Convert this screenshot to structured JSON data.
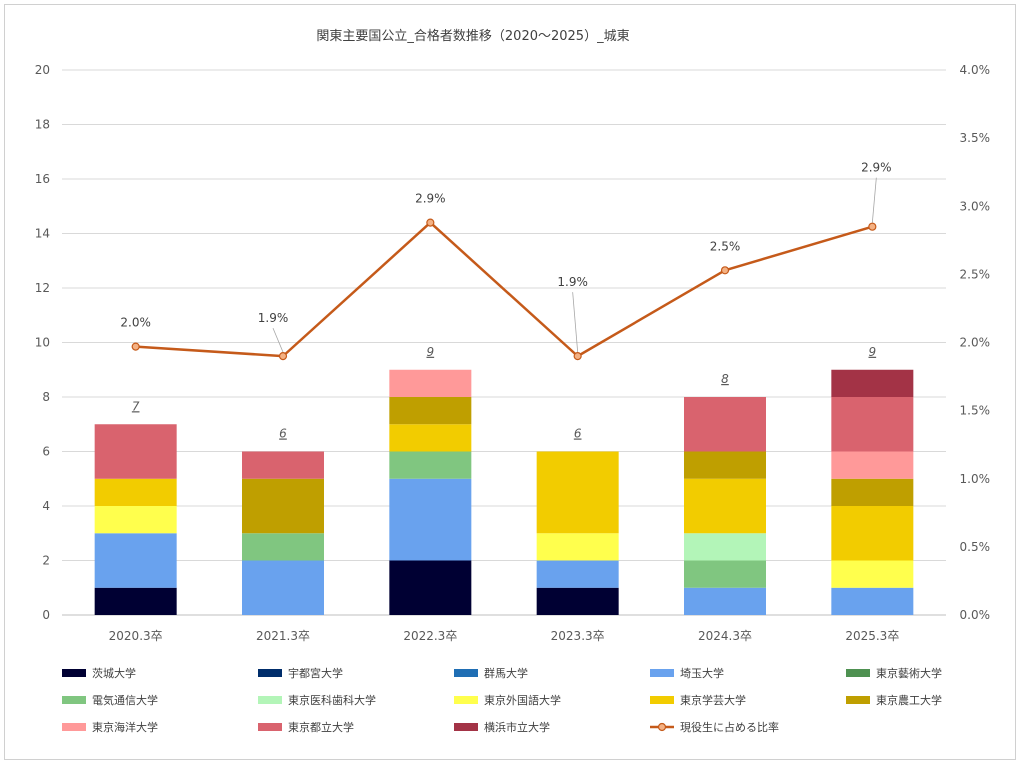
{
  "chart_data": {
    "type": "bar",
    "stacked": true,
    "title": "関東主要国公立_合格者数推移（2020～2025）_城東",
    "categories": [
      "2020.3卒",
      "2021.3卒",
      "2022.3卒",
      "2023.3卒",
      "2024.3卒",
      "2025.3卒"
    ],
    "ylim": [
      0,
      20
    ],
    "yticks": [
      "0",
      "2",
      "4",
      "6",
      "8",
      "10",
      "12",
      "14",
      "16",
      "18",
      "20"
    ],
    "y2lim": [
      0,
      4.0
    ],
    "y2ticks": [
      "0.0%",
      "0.5%",
      "1.0%",
      "1.5%",
      "2.0%",
      "2.5%",
      "3.0%",
      "3.5%",
      "4.0%"
    ],
    "grid": true,
    "legend_position": "bottom",
    "series": [
      {
        "name": "茨城大学",
        "color": "#000033",
        "values": [
          1,
          0,
          2,
          1,
          0,
          0
        ]
      },
      {
        "name": "宇都宮大学",
        "color": "#002d6b",
        "values": [
          0,
          0,
          0,
          0,
          0,
          0
        ]
      },
      {
        "name": "群馬大学",
        "color": "#1f6eb4",
        "values": [
          0,
          0,
          0,
          0,
          0,
          0
        ]
      },
      {
        "name": "埼玉大学",
        "color": "#69a2ee",
        "values": [
          2,
          2,
          3,
          1,
          1,
          1
        ]
      },
      {
        "name": "東京藝術大学",
        "color": "#4e9151",
        "values": [
          0,
          0,
          0,
          0,
          0,
          0
        ]
      },
      {
        "name": "電気通信大学",
        "color": "#80c680",
        "values": [
          0,
          1,
          1,
          0,
          1,
          0
        ]
      },
      {
        "name": "東京医科歯科大学",
        "color": "#b3f5b8",
        "values": [
          0,
          0,
          0,
          0,
          1,
          0
        ]
      },
      {
        "name": "東京外国語大学",
        "color": "#ffff4d",
        "values": [
          1,
          0,
          0,
          1,
          0,
          1
        ]
      },
      {
        "name": "東京学芸大学",
        "color": "#f2cc00",
        "values": [
          1,
          0,
          1,
          3,
          2,
          2
        ]
      },
      {
        "name": "東京農工大学",
        "color": "#bf9f00",
        "values": [
          0,
          2,
          1,
          0,
          1,
          1
        ]
      },
      {
        "name": "東京海洋大学",
        "color": "#ff9999",
        "values": [
          0,
          0,
          1,
          0,
          0,
          1
        ]
      },
      {
        "name": "東京都立大学",
        "color": "#d9636e",
        "values": [
          2,
          1,
          0,
          0,
          2,
          2
        ]
      },
      {
        "name": "横浜市立大学",
        "color": "#a33346",
        "values": [
          0,
          0,
          0,
          0,
          0,
          1
        ]
      }
    ],
    "totals": [
      "7",
      "6",
      "9",
      "6",
      "8",
      "9"
    ],
    "line_series": {
      "name": "現役生に占める比率",
      "color": "#c55a1a",
      "values": [
        1.97,
        1.9,
        2.88,
        1.9,
        2.53,
        2.85
      ],
      "labels": [
        "2.0%",
        "1.9%",
        "2.9%",
        "1.9%",
        "2.5%",
        "2.9%"
      ]
    }
  }
}
